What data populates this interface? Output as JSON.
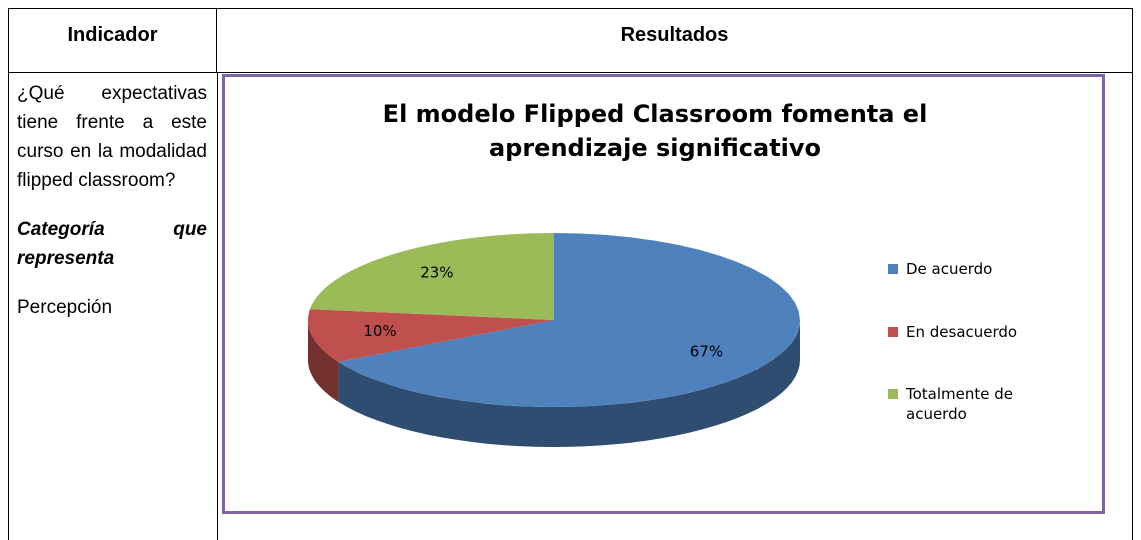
{
  "table": {
    "headers": [
      "Indicador",
      "Resultados"
    ],
    "question": "¿Qué expectativas tiene frente a este curso en la modalidad flipped classroom?",
    "category_label": "Categoría que representa",
    "category": "Percepción"
  },
  "chart_data": {
    "type": "pie",
    "title": "El modelo Flipped Classroom fomenta el aprendizaje significativo",
    "categories": [
      "De acuerdo",
      "En desacuerdo",
      "Totalmente de acuerdo"
    ],
    "values": [
      67,
      10,
      23
    ],
    "value_labels": [
      "67%",
      "10%",
      "23%"
    ],
    "colors": [
      "#4f81bd",
      "#c0504d",
      "#9bbb59"
    ]
  }
}
